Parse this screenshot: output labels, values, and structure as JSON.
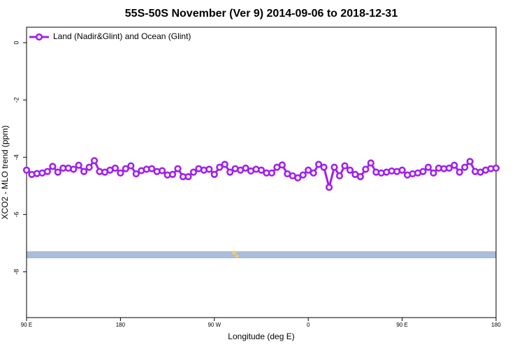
{
  "chart_data": {
    "type": "line",
    "title": "55S-50S November (Ver 9)   2014-09-06 to 2018-12-31",
    "xlabel": "Longitude (deg E)",
    "ylabel": "XCO2 - MLO trend (ppm)",
    "x": [
      90,
      95,
      100,
      105,
      110,
      115,
      120,
      125,
      130,
      135,
      140,
      145,
      150,
      155,
      160,
      165,
      170,
      175,
      180,
      185,
      190,
      195,
      200,
      205,
      210,
      215,
      220,
      225,
      230,
      235,
      240,
      245,
      250,
      255,
      260,
      265,
      270,
      275,
      280,
      285,
      290,
      295,
      300,
      305,
      310,
      315,
      320,
      325,
      330,
      335,
      340,
      345,
      350,
      355,
      360,
      365,
      370,
      375,
      380,
      385,
      390,
      395,
      400,
      405,
      410,
      415,
      420,
      425,
      430,
      435,
      440,
      445,
      450,
      455,
      460,
      465,
      470,
      475,
      480,
      485,
      490,
      495,
      500,
      505,
      510,
      515,
      520,
      525,
      530,
      535,
      540
    ],
    "series": [
      {
        "name": "Land (Nadir&Glint) and Ocean (Glint)",
        "color": "#a020f0",
        "values": [
          -4.45,
          -4.6,
          -4.57,
          -4.55,
          -4.5,
          -4.32,
          -4.52,
          -4.38,
          -4.38,
          -4.42,
          -4.28,
          -4.5,
          -4.35,
          -4.12,
          -4.5,
          -4.52,
          -4.45,
          -4.38,
          -4.55,
          -4.4,
          -4.3,
          -4.58,
          -4.47,
          -4.42,
          -4.4,
          -4.5,
          -4.47,
          -4.62,
          -4.6,
          -4.4,
          -4.68,
          -4.68,
          -4.52,
          -4.4,
          -4.45,
          -4.42,
          -4.6,
          -4.35,
          -4.25,
          -4.52,
          -4.4,
          -4.45,
          -4.38,
          -4.48,
          -4.42,
          -4.45,
          -4.55,
          -4.55,
          -4.35,
          -4.27,
          -4.58,
          -4.65,
          -4.72,
          -4.62,
          -4.45,
          -4.55,
          -4.25,
          -4.35,
          -5.05,
          -4.35,
          -4.65,
          -4.3,
          -4.45,
          -4.6,
          -4.68,
          -4.42,
          -4.2,
          -4.52,
          -4.55,
          -4.52,
          -4.48,
          -4.5,
          -4.45,
          -4.62,
          -4.58,
          -4.55,
          -4.5,
          -4.35,
          -4.55,
          -4.38,
          -4.4,
          -4.38,
          -4.28,
          -4.52,
          -4.35,
          -4.15,
          -4.5,
          -4.52,
          -4.45,
          -4.4,
          -4.38
        ]
      }
    ],
    "xlim": [
      90,
      540
    ],
    "xticks": [
      {
        "value": 90,
        "label": "90 E"
      },
      180,
      {
        "value": 270,
        "label": "90 W"
      },
      {
        "value": 360,
        "label": "0"
      },
      {
        "value": 450,
        "label": "90 E"
      },
      {
        "value": 540,
        "label": "180"
      }
    ],
    "ylim": [
      -9.6,
      0.54
    ],
    "yticks": [
      0,
      -2,
      -4,
      -6,
      -8
    ],
    "legend": "top-left"
  }
}
